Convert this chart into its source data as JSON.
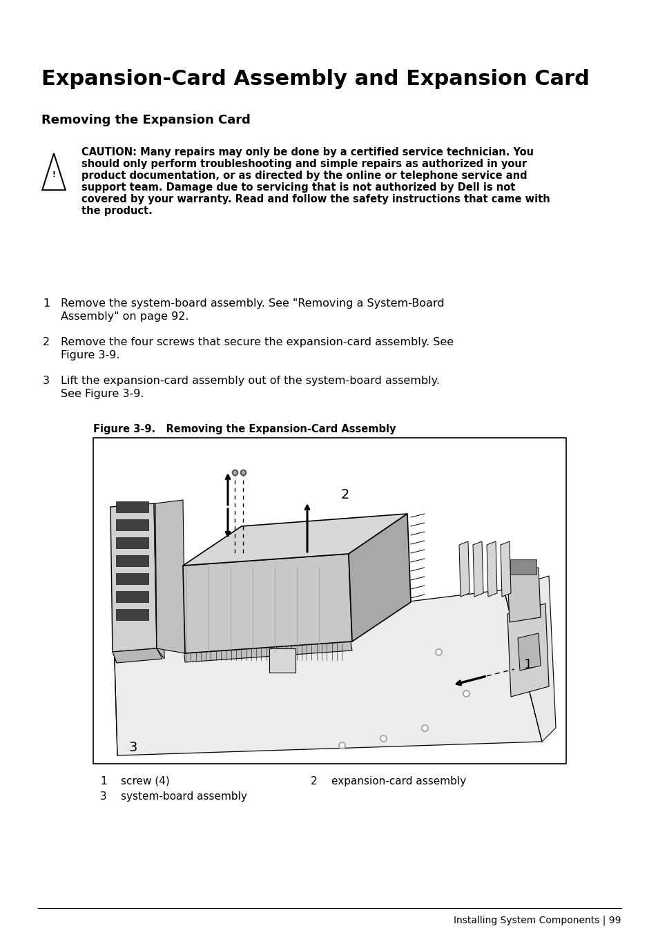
{
  "title": "Expansion-Card Assembly and Expansion Card",
  "subtitle": "Removing the Expansion Card",
  "caution_lines": [
    "CAUTION: Many repairs may only be done by a certified service technician. You",
    "should only perform troubleshooting and simple repairs as authorized in your",
    "product documentation, or as directed by the online or telephone service and",
    "support team. Damage due to servicing that is not authorized by Dell is not",
    "covered by your warranty. Read and follow the safety instructions that came with",
    "the product."
  ],
  "step1_lines": [
    "Remove the system-board assembly. See \"Removing a System-Board",
    "Assembly\" on page 92."
  ],
  "step2_lines": [
    "Remove the four screws that secure the expansion-card assembly. See",
    "Figure 3-9."
  ],
  "step3_lines": [
    "Lift the expansion-card assembly out of the system-board assembly.",
    "See Figure 3-9."
  ],
  "figure_label": "Figure 3-9.   Removing the Expansion-Card Assembly",
  "legend_1_num": "1",
  "legend_1_text": "screw (4)",
  "legend_2_num": "2",
  "legend_2_text": "expansion-card assembly",
  "legend_3_num": "3",
  "legend_3_text": "system-board assembly",
  "footer": "Installing System Components | 99",
  "bg_color": "#ffffff",
  "text_color": "#000000"
}
